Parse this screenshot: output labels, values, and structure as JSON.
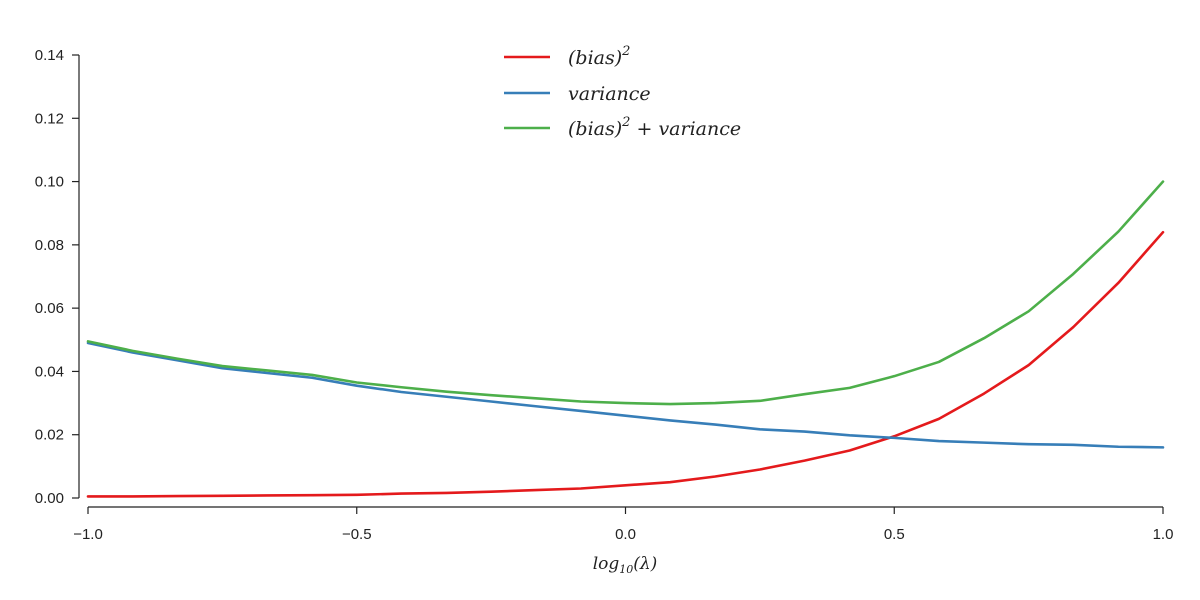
{
  "chart_data": {
    "type": "line",
    "xlabel": "log10(λ)",
    "ylabel": "",
    "xlim": [
      -1.0,
      1.0
    ],
    "ylim": [
      0.0,
      0.14
    ],
    "grid": false,
    "legend_position": "top-center",
    "x_ticks": [
      {
        "value": -1.0,
        "label": "−1.0"
      },
      {
        "value": -0.5,
        "label": "−0.5"
      },
      {
        "value": 0.0,
        "label": "0.0"
      },
      {
        "value": 0.5,
        "label": "0.5"
      },
      {
        "value": 1.0,
        "label": "1.0"
      }
    ],
    "y_ticks": [
      {
        "value": 0.0,
        "label": "0.00"
      },
      {
        "value": 0.02,
        "label": "0.02"
      },
      {
        "value": 0.04,
        "label": "0.04"
      },
      {
        "value": 0.06,
        "label": "0.06"
      },
      {
        "value": 0.08,
        "label": "0.08"
      },
      {
        "value": 0.1,
        "label": "0.10"
      },
      {
        "value": 0.12,
        "label": "0.12"
      },
      {
        "value": 0.14,
        "label": "0.14"
      }
    ],
    "x": [
      -1.0,
      -0.917,
      -0.833,
      -0.75,
      -0.667,
      -0.583,
      -0.5,
      -0.417,
      -0.333,
      -0.25,
      -0.167,
      -0.083,
      0.0,
      0.083,
      0.167,
      0.25,
      0.333,
      0.417,
      0.5,
      0.583,
      0.667,
      0.75,
      0.833,
      0.917,
      1.0
    ],
    "series": [
      {
        "name": "(bias)^2",
        "color": "#e41a1c",
        "values": [
          0.0005,
          0.0005,
          0.0006,
          0.0007,
          0.0008,
          0.0009,
          0.001,
          0.0014,
          0.0016,
          0.002,
          0.0025,
          0.003,
          0.004,
          0.005,
          0.0068,
          0.009,
          0.0118,
          0.015,
          0.0195,
          0.025,
          0.033,
          0.042,
          0.054,
          0.068,
          0.084
        ]
      },
      {
        "name": "variance",
        "color": "#377eb8",
        "values": [
          0.049,
          0.046,
          0.0435,
          0.041,
          0.0395,
          0.038,
          0.0355,
          0.0335,
          0.032,
          0.0305,
          0.029,
          0.0275,
          0.026,
          0.0245,
          0.0232,
          0.0217,
          0.021,
          0.0198,
          0.019,
          0.018,
          0.0175,
          0.017,
          0.0168,
          0.0162,
          0.016
        ]
      },
      {
        "name": "(bias)^2 + variance",
        "color": "#4daf4a",
        "values": [
          0.0495,
          0.0465,
          0.044,
          0.0417,
          0.0403,
          0.0389,
          0.0365,
          0.035,
          0.0336,
          0.0325,
          0.0315,
          0.0305,
          0.03,
          0.0297,
          0.03,
          0.0307,
          0.0328,
          0.0348,
          0.0385,
          0.043,
          0.0505,
          0.059,
          0.0708,
          0.0842,
          0.1
        ]
      }
    ]
  }
}
